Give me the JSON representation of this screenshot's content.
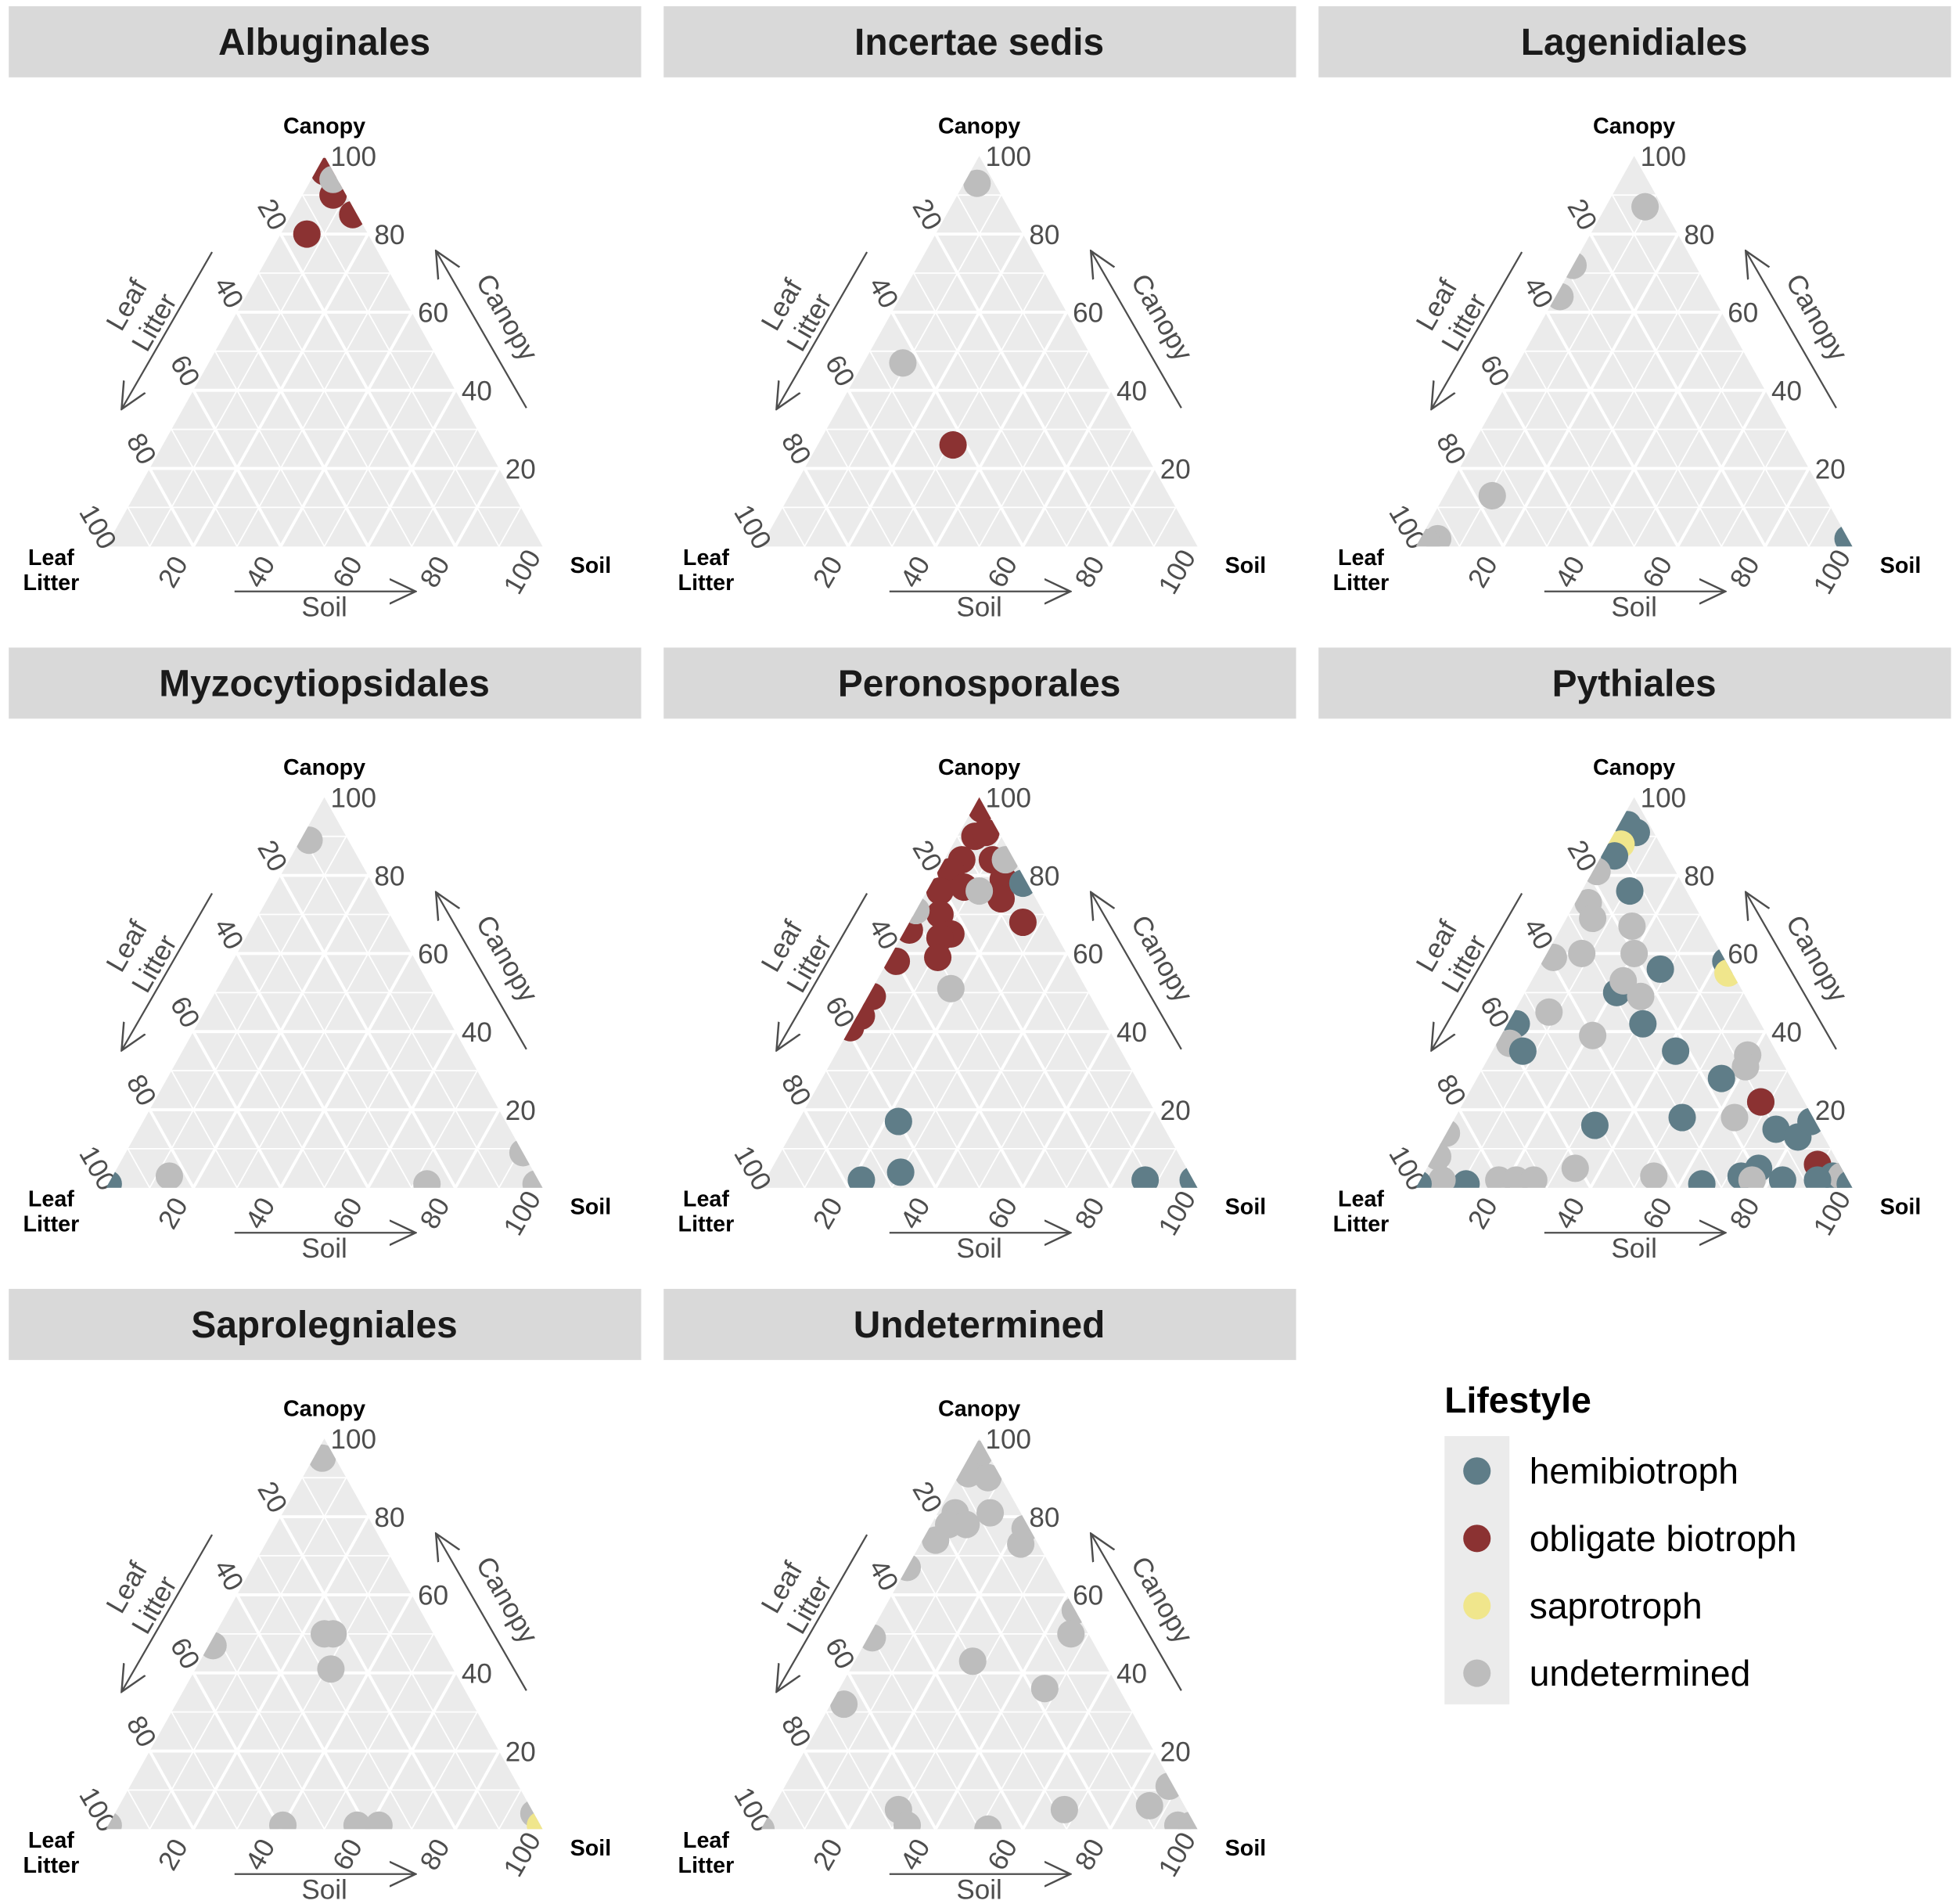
{
  "chart_data": {
    "type": "ternary-scatter",
    "axes": {
      "top_vertex": "Canopy",
      "right_vertex": "Soil",
      "left_vertex_lines": [
        "Leaf",
        "Litter"
      ],
      "bottom_axis_title": "Soil",
      "right_axis_title": "Canopy",
      "left_axis_title_lines": [
        "Leaf",
        "Litter"
      ],
      "ticks": [
        "20",
        "40",
        "60",
        "80",
        "100"
      ],
      "range": [
        0,
        100
      ]
    },
    "grid": true,
    "point_fields": [
      "lifestyle",
      "canopy",
      "soil",
      "leaf_litter"
    ],
    "panels": [
      {
        "title": "Albuginales",
        "points": [
          [
            "obligate biotroph",
            80,
            6,
            14
          ],
          [
            "obligate biotroph",
            90,
            7,
            3
          ],
          [
            "obligate biotroph",
            85,
            14,
            1
          ],
          [
            "obligate biotroph",
            96,
            2,
            2
          ],
          [
            "undetermined",
            94,
            5,
            1
          ]
        ]
      },
      {
        "title": "Incertae sedis",
        "points": [
          [
            "undetermined",
            93,
            3,
            4
          ],
          [
            "undetermined",
            47,
            9,
            44
          ],
          [
            "obligate biotroph",
            26,
            31,
            43
          ]
        ]
      },
      {
        "title": "Lagenidiales",
        "points": [
          [
            "undetermined",
            87,
            9,
            4
          ],
          [
            "undetermined",
            72,
            0,
            28
          ],
          [
            "undetermined",
            64,
            1,
            35
          ],
          [
            "undetermined",
            13,
            11,
            76
          ],
          [
            "undetermined",
            2,
            4,
            94
          ],
          [
            "undetermined",
            1,
            2,
            97
          ],
          [
            "hemibiotroph",
            2,
            98,
            0
          ]
        ]
      },
      {
        "title": "Myzocytiopsidales",
        "points": [
          [
            "undetermined",
            89,
            2,
            9
          ],
          [
            "undetermined",
            3,
            13,
            84
          ],
          [
            "undetermined",
            1,
            73,
            26
          ],
          [
            "undetermined",
            9,
            91,
            0
          ],
          [
            "undetermined",
            1,
            98,
            1
          ],
          [
            "hemibiotroph",
            1,
            0,
            99
          ]
        ]
      },
      {
        "title": "Peronosporales",
        "points": [
          [
            "obligate biotroph",
            97,
            2,
            1
          ],
          [
            "obligate biotroph",
            90,
            4,
            6
          ],
          [
            "obligate biotroph",
            91,
            6,
            3
          ],
          [
            "obligate biotroph",
            84,
            4,
            12
          ],
          [
            "obligate biotroph",
            84,
            11,
            5
          ],
          [
            "obligate biotroph",
            81,
            3,
            16
          ],
          [
            "obligate biotroph",
            76,
            3,
            21
          ],
          [
            "obligate biotroph",
            77,
            8,
            15
          ],
          [
            "obligate biotroph",
            79,
            16,
            5
          ],
          [
            "obligate biotroph",
            68,
            26,
            6
          ],
          [
            "obligate biotroph",
            74,
            18,
            8
          ],
          [
            "obligate biotroph",
            70,
            6,
            24
          ],
          [
            "obligate biotroph",
            65,
            11,
            24
          ],
          [
            "obligate biotroph",
            64,
            9,
            27
          ],
          [
            "obligate biotroph",
            59,
            11,
            30
          ],
          [
            "obligate biotroph",
            66,
            1,
            33
          ],
          [
            "obligate biotroph",
            58,
            2,
            40
          ],
          [
            "obligate biotroph",
            49,
            1,
            50
          ],
          [
            "obligate biotroph",
            44,
            1,
            55
          ],
          [
            "obligate biotroph",
            41,
            0,
            59
          ],
          [
            "undetermined",
            51,
            18,
            31
          ],
          [
            "undetermined",
            76,
            12,
            12
          ],
          [
            "undetermined",
            84,
            14,
            2
          ],
          [
            "undetermined",
            71,
            0,
            29
          ],
          [
            "hemibiotroph",
            78,
            21,
            1
          ],
          [
            "hemibiotroph",
            17,
            23,
            60
          ],
          [
            "hemibiotroph",
            4,
            30,
            66
          ],
          [
            "hemibiotroph",
            2,
            22,
            76
          ],
          [
            "hemibiotroph",
            2,
            87,
            11
          ],
          [
            "hemibiotroph",
            2,
            98,
            0
          ]
        ]
      },
      {
        "title": "Pythiales",
        "points": [
          [
            "hemibiotroph",
            91,
            5,
            4
          ],
          [
            "hemibiotroph",
            93,
            2,
            5
          ],
          [
            "saprotroph",
            88,
            3,
            9
          ],
          [
            "hemibiotroph",
            85,
            3,
            12
          ],
          [
            "hemibiotroph",
            76,
            11,
            13
          ],
          [
            "undetermined",
            81,
            1,
            18
          ],
          [
            "undetermined",
            73,
            3,
            24
          ],
          [
            "undetermined",
            69,
            6,
            25
          ],
          [
            "undetermined",
            67,
            16,
            17
          ],
          [
            "undetermined",
            59,
            2,
            39
          ],
          [
            "undetermined",
            60,
            8,
            32
          ],
          [
            "undetermined",
            60,
            20,
            20
          ],
          [
            "hemibiotroph",
            56,
            28,
            16
          ],
          [
            "hemibiotroph",
            50,
            21,
            29
          ],
          [
            "undetermined",
            53,
            21,
            26
          ],
          [
            "undetermined",
            49,
            27,
            24
          ],
          [
            "hemibiotroph",
            42,
            31,
            27
          ],
          [
            "undetermined",
            45,
            8,
            47
          ],
          [
            "undetermined",
            39,
            21,
            40
          ],
          [
            "hemibiotroph",
            42,
            2,
            56
          ],
          [
            "undetermined",
            37,
            3,
            60
          ],
          [
            "hemibiotroph",
            35,
            7,
            58
          ],
          [
            "hemibiotroph",
            58,
            42,
            0
          ],
          [
            "saprotroph",
            55,
            44,
            1
          ],
          [
            "hemibiotroph",
            35,
            42,
            23
          ],
          [
            "undetermined",
            34,
            59,
            7
          ],
          [
            "undetermined",
            31,
            60,
            9
          ],
          [
            "hemibiotroph",
            28,
            56,
            16
          ],
          [
            "hemibiotroph",
            22,
            68,
            10
          ],
          [
            "obligate biotroph",
            22,
            68,
            10
          ],
          [
            "undetermined",
            18,
            64,
            18
          ],
          [
            "hemibiotroph",
            18,
            52,
            30
          ],
          [
            "hemibiotroph",
            16,
            33,
            51
          ],
          [
            "hemibiotroph",
            15,
            75,
            10
          ],
          [
            "hemibiotroph",
            13,
            81,
            6
          ],
          [
            "hemibiotroph",
            17,
            82,
            1
          ],
          [
            "obligate biotroph",
            6,
            89,
            5
          ],
          [
            "hemibiotroph",
            5,
            76,
            19
          ],
          [
            "hemibiotroph",
            3,
            73,
            24
          ],
          [
            "undetermined",
            2,
            76,
            22
          ],
          [
            "hemibiotroph",
            1,
            65,
            34
          ],
          [
            "hemibiotroph",
            2,
            83,
            15
          ],
          [
            "hemibiotroph",
            3,
            94,
            3
          ],
          [
            "undetermined",
            3,
            96,
            1
          ],
          [
            "hemibiotroph",
            1,
            99,
            0
          ],
          [
            "hemibiotroph",
            2,
            91,
            7
          ],
          [
            "undetermined",
            3,
            53,
            44
          ],
          [
            "undetermined",
            5,
            34,
            61
          ],
          [
            "hemibiotroph",
            1,
            11,
            88
          ],
          [
            "undetermined",
            2,
            18,
            80
          ],
          [
            "undetermined",
            2,
            22,
            76
          ],
          [
            "undetermined",
            2,
            26,
            72
          ],
          [
            "undetermined",
            2,
            5,
            93
          ],
          [
            "undetermined",
            8,
            1,
            91
          ],
          [
            "undetermined",
            14,
            0,
            86
          ],
          [
            "hemibiotroph",
            1,
            0,
            99
          ]
        ]
      },
      {
        "title": "Saprolegniales",
        "points": [
          [
            "undetermined",
            95,
            2,
            3
          ],
          [
            "undetermined",
            47,
            1,
            52
          ],
          [
            "undetermined",
            50,
            25,
            25
          ],
          [
            "undetermined",
            50,
            27,
            23
          ],
          [
            "undetermined",
            41,
            31,
            28
          ],
          [
            "undetermined",
            1,
            40,
            59
          ],
          [
            "undetermined",
            1,
            57,
            42
          ],
          [
            "undetermined",
            1,
            62,
            37
          ],
          [
            "undetermined",
            4,
            96,
            0
          ],
          [
            "undetermined",
            1,
            0,
            99
          ],
          [
            "saprotroph",
            1,
            99,
            0
          ]
        ]
      },
      {
        "title": "Undetermined",
        "points": [
          [
            "undetermined",
            96,
            2,
            2
          ],
          [
            "undetermined",
            91,
            2,
            7
          ],
          [
            "undetermined",
            90,
            7,
            3
          ],
          [
            "undetermined",
            81,
            4,
            15
          ],
          [
            "undetermined",
            78,
            4,
            18
          ],
          [
            "undetermined",
            78,
            8,
            14
          ],
          [
            "undetermined",
            81,
            12,
            7
          ],
          [
            "undetermined",
            74,
            3,
            23
          ],
          [
            "undetermined",
            73,
            23,
            4
          ],
          [
            "undetermined",
            77,
            22,
            1
          ],
          [
            "undetermined",
            67,
            0,
            33
          ],
          [
            "undetermined",
            56,
            44,
            0
          ],
          [
            "undetermined",
            50,
            46,
            4
          ],
          [
            "undetermined",
            49,
            1,
            50
          ],
          [
            "undetermined",
            43,
            27,
            30
          ],
          [
            "undetermined",
            36,
            47,
            17
          ],
          [
            "undetermined",
            32,
            3,
            65
          ],
          [
            "undetermined",
            5,
            29,
            66
          ],
          [
            "undetermined",
            1,
            33,
            66
          ],
          [
            "undetermined",
            0,
            52,
            48
          ],
          [
            "undetermined",
            5,
            67,
            28
          ],
          [
            "undetermined",
            6,
            86,
            8
          ],
          [
            "undetermined",
            11,
            88,
            1
          ],
          [
            "undetermined",
            1,
            95,
            4
          ],
          [
            "undetermined",
            1,
            98,
            1
          ],
          [
            "undetermined",
            0,
            0,
            100
          ]
        ]
      }
    ],
    "legend": {
      "title": "Lifestyle",
      "placement": "bottom-right",
      "entries": [
        {
          "label": "hemibiotroph",
          "color": "#5f7d88"
        },
        {
          "label": "obligate biotroph",
          "color": "#8b3232"
        },
        {
          "label": "saprotroph",
          "color": "#f0e68c"
        },
        {
          "label": "undetermined",
          "color": "#bdbdbd"
        }
      ]
    }
  }
}
